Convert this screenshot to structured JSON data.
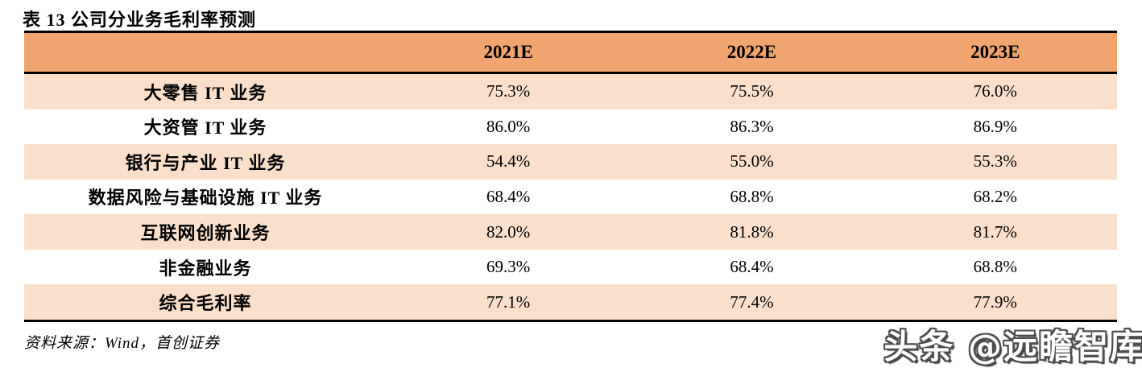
{
  "title": "表 13 公司分业务毛利率预测",
  "table": {
    "columns": [
      "",
      "2021E",
      "2022E",
      "2023E"
    ],
    "rows": [
      {
        "label": "大零售 IT 业务",
        "values": [
          "75.3%",
          "75.5%",
          "76.0%"
        ]
      },
      {
        "label": "大资管 IT 业务",
        "values": [
          "86.0%",
          "86.3%",
          "86.9%"
        ]
      },
      {
        "label": "银行与产业 IT 业务",
        "values": [
          "54.4%",
          "55.0%",
          "55.3%"
        ]
      },
      {
        "label": "数据风险与基础设施 IT 业务",
        "values": [
          "68.4%",
          "68.8%",
          "68.2%"
        ]
      },
      {
        "label": "互联网创新业务",
        "values": [
          "82.0%",
          "81.8%",
          "81.7%"
        ]
      },
      {
        "label": "非金融业务",
        "values": [
          "69.3%",
          "68.4%",
          "68.8%"
        ]
      },
      {
        "label": "综合毛利率",
        "values": [
          "77.1%",
          "77.4%",
          "77.9%"
        ]
      }
    ]
  },
  "source": "资料来源：Wind，首创证券",
  "watermark": "头条 @远瞻智库",
  "colors": {
    "header_bg": "#F0A571",
    "row_alt_bg": "#FADFCB",
    "border": "#000000",
    "text": "#000000",
    "watermark_fill": "#FFFFFF",
    "watermark_outline": "#4D4D4D"
  }
}
